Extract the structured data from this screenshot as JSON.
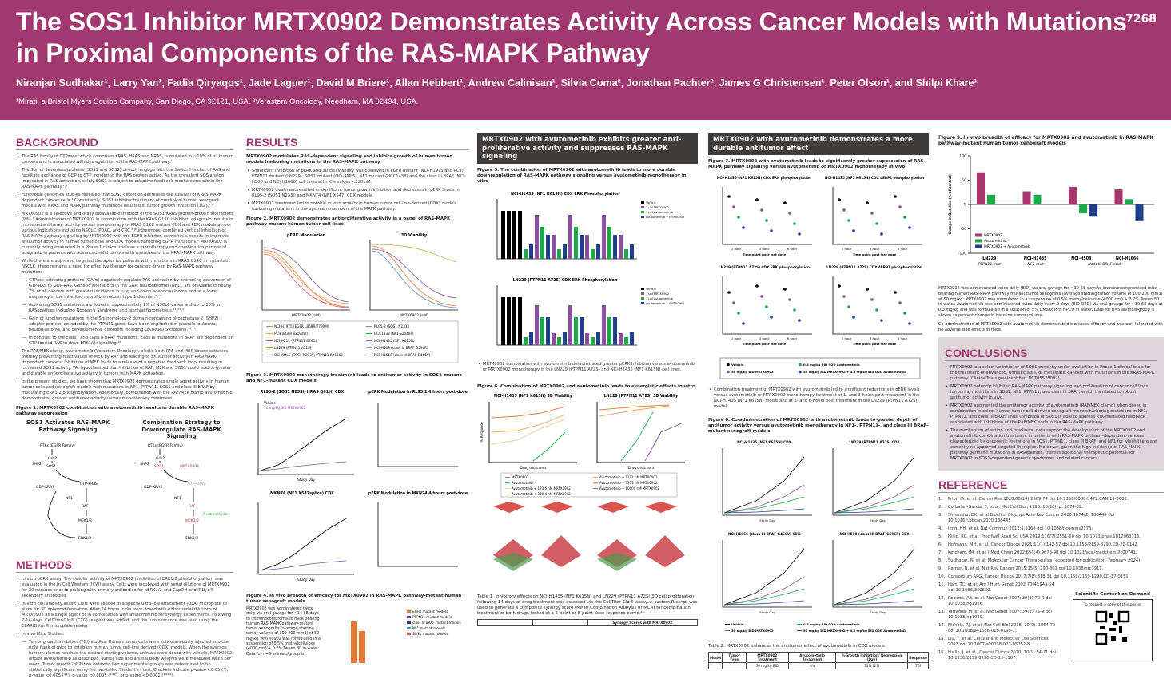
{
  "header": {
    "title": "The SOS1 Inhibitor MRTX0902 Demonstrates Activity Across Cancer Models with Mutations in Proximal Components of the RAS-MAPK Pathway",
    "poster_number": "7268",
    "authors": "Niranjan Sudhakar¹, Larry Yan¹, Fadia Qiryaqos¹, Jade Laguer¹, David M Briere¹, Allan Hebbert¹, Andrew Calinisan¹, Silvia Coma², Jonathan Pachter², James G Christensen¹, Peter Olson¹, and Shilpi Khare¹",
    "affiliations": "¹Mirati, a Bristol Myers Squibb Company, San Diego, CA 92121, USA. ²Verastem Oncology, Needham, MA 02494, USA."
  },
  "background": {
    "heading": "BACKGROUND",
    "bullets": [
      {
        "t": "The RAS family of GTPases, which comprises KRAS, HRAS and NRAS, is mutated in ~19% of all human cancers and is associated with dysregulation of the RAS-MAPK pathway.¹"
      },
      {
        "t": "The Son of Sevenless proteins (SOS1 and SOS2) directly engage with the Switch I pocket of RAS and facilitate exchange of GDP to GTP, rendering the RAS protein active. As the prevalent SOS analog implicated in RAS activation, solely SOS1 is subject to adaptive feedback mechanisms within the RAS-MAPK pathway.²·³"
      },
      {
        "t": "Functional genomics studies revealed that SOS1 depletion decreases the survival of KRAS-MAPK dependent cancer cells.⁴ Consistently, SOS1 inhibitor treatment of preclinical human xenograft models with KRAS and MAPK pathway mutations resulted in tumor growth inhibition (TGI).⁵·⁶"
      },
      {
        "t": "MRTX0902 is a selective and orally bioavailable inhibitor of the SOS1:KRAS protein-protein interaction (PPI).⁷ Administration of MRTX0902 in combination with the KRAS G12C inhibitor, adagrasib, results in increased antitumor activity versus monotherapy in KRAS G12C mutant CDX and PDX models across various indications including NSCLC, PDAC, and CRC.⁸ Furthermore, combined vertical inhibition of RAS-MAPK pathway signaling by MRTX0902 with the EGFR inhibitor, osimertinib, results in improved antitumor activity in human tumor cells and CDX models harboring EGFR mutations.⁸ MRTX0902 is currently being evaluated in a Phase 1 clinical trials as a monotherapy and combination partner of adagrasib in patients with advanced solid tumors with mutations in the KRAS-MAPK pathway."
      },
      {
        "t": "While there are approved targeted therapies for patients with mutations in KRAS G12C in metastatic NSCLC, there remains a need for effective therapy for cancers driven by RAS-MAPK pathway mutations:"
      },
      {
        "t": "GTPase-activating proteins (GAPs) negatively regulate RAS activation by promoting conversion of GTP-RAS to GDP-RAS. Genetic alterations in the GAP, neurofibromin (NF1), are prevalent in nearly 7% of all cancers with greatest incidence in lung and colon adenocarcinoma and at a lower frequency in the inherited neurofibromatosis type 1 disorder.⁹·¹⁰",
        "sub": true
      },
      {
        "t": "Activating SOS1 mutations are found in approximately 1% of NSCLC cases and up to 10% in RASopathies including Noonan's Syndrome and gingival fibromatosis.¹¹·¹²·¹³",
        "sub": true
      },
      {
        "t": "Gain of function mutations in the Src homology-2 domain-containing phosphatase 2 (SHP2) adaptor protein, encoded by the PTPN11 gene, have been implicated in juvenile leukemia, neuroblastoma, and developmental disorders including LEOPARD Syndrome.¹⁴·¹⁵",
        "sub": true
      },
      {
        "t": "In contrast to the class I and class II BRAF mutations, class III mutations in BRAF are dependent on GTP loaded RAS to drive ERK1/2 signalling.¹⁶",
        "sub": true
      },
      {
        "t": "The RAF/MEK clamp, avutometinib (Verastem Oncology), blocks both RAF and MEK kinase activities, thereby preventing reactivation of MEK by RAF and leading to antitumor activity in RAS/MAPK-dependent cancers. Inhibition of MEK leads to a release of a negative feedback loop, resulting in increased SOS1 activity. We hypothesized that inhibition of RAF, MEK and SOS1 could lead to greater and durable antiproliferative activity in tumors with MAPK activation."
      },
      {
        "t": "In the present studies, we have shown that MRTX0902 demonstrates single agent activity in human tumor cells and xenograft models with mutations in NF1, PTPN11, SOS1 and class III BRAF by modulating ERK1/2 phosphorylation. Additionally, combination with the RAF/MEK clamp avutometinib demonstrated greater antitumor activity versus monotherapy treatment."
      }
    ],
    "fig1_caption": "Figure 1. MRTX0902 combination with avutometinib results in durable RAS-MAPK pathway suppression",
    "fig1": {
      "left_title": "SOS1 Activates RAS-MAPK Pathway Signaling",
      "right_title": "Combination Strategy to Downregulate RAS-MAPK Signaling",
      "nodes": [
        "RTKs (EGFR Family)",
        "Grb2",
        "SHP2",
        "SOS1",
        "GDP-KRAS",
        "GTP-KRAS",
        "NF1",
        "RAF",
        "MEK1/2",
        "ERK1/2"
      ],
      "drug1": "MRTX0902",
      "drug2": "Avutometinib"
    }
  },
  "methods": {
    "heading": "METHODS",
    "bullets": [
      {
        "t": "In vitro pERK assay: The cellular activity of MRTX0902 (inhibition of ERK1/2 phosphorylation) was evaluated in the In-Cell Western (ICW) assay. Cells were incubated with serial dilutions of MRTX0902 for 30 minutes prior to probing with primary antibodies for pERK1/2 and GapDH and IRDye® secondary antibodies."
      },
      {
        "t": "In vitro cell viability assay: Cells were seeded in a special ultra-low attachment (ULA) microplate to allow for 3D spheroid formation. After 24 hours, cells were dosed with either serial dilutions of MRTX0902 as a single agent or in combination with avutometinib for synergy experiments. Following 7-14-days, CellTiter-Glo® (CTG) reagent was added, and the luminescence was read using the CLARIOstar® microplate reader."
      },
      {
        "t": "In vivo Mice Studies:"
      },
      {
        "t": "Tumor growth inhibition (TGI) studies: Human tumor cells were subcutaneously injected into the right flank of mice to establish human tumor cell-line derived (CDX) models. When the average tumor volumes reached the desired starting volume, animals were dosed with vehicle, MRTX0902, and/or avutometinib as described. Tumor size and animal body weights were measured twice per week. Tumor growth inhibition between two experimental groups was determined to be statistically significant using the two-tailed Student's t test. Brackets indicate p-value <0.05 (*), p-value <0.005 (**), p-value <0.0005 (***), or p-value <0.0001 (****).",
        "sub": true
      }
    ]
  },
  "results": {
    "heading": "RESULTS",
    "subheading": "MRTX0902 modulates RAS-dependent signaling and inhibits growth of human tumor models harboring mutations in the RAS-MAPK pathway",
    "bullets": [
      {
        "t": "Significant inhibition of pERK and 3D cell viability was observed in EGFR mutant (NCI-H1975 and PC9), PTPN11 mutant (LN229), SOS1 mutant (OCI-AML5), NF1 mutant (HCC1438) and the class III BRAF (NCI-H508 and NCI-H1666) cell lines with IC₅₀ values <250 nM."
      },
      {
        "t": "MRTX0902 treatment resulted in significant tumor growth inhibition and decreases in pERK levels in RL95-2 (SOS1 N233I) and MKN74 (NF1 X547) CDX models."
      },
      {
        "t": "MRTX0902 treatment led to notable in vivo activity in human tumor cell line-derived (CDX) models harboring mutations in the upstream members of the MAPK pathway."
      }
    ],
    "fig2_caption": "Figure 2. MRTX0902 demonstrates antiproliferative activity in a panel of RAS-MAPK pathway-mutant human tumor cell lines",
    "fig2_panels": [
      "pERK Modulation",
      "3D Viability"
    ],
    "fig2_xlabel": "MRTX0902 (nM)",
    "fig2_legend": [
      "NCI-H1975 (EGFR L858R/T790M)",
      "PC9 (EGFR ex19del)",
      "NCI-H211 (PTPN11 E76G)",
      "LN229 (PTPN11 A72S)",
      "OCI-AML5 (SOS1 N233Y; PTPN11 R265Q)",
      "RL95-2 (SOS1 N233I)",
      "HCC1438 (NF1 S2040F)",
      "NCI-H1435 (NF1 K615N)",
      "NCI-H508 (class III BRAF G596R)",
      "NCI-H1666 (class III BRAF G466V)"
    ],
    "fig3_caption": "Figure 3. MRTX0902 monotherapy treatment leads to antitumor activity in SOS1-mutant and NF1-mutant CDX models",
    "fig3_panels": [
      "RL95-2 (SOS1 N233I; HRAS Q61H) CDX",
      "pERK Modulation in RL95-2 4 hours post-dose",
      "MKN74 (NF1 X547splice) CDX",
      "pERK Modulation in MKN74 4 hours post-dose"
    ],
    "fig3_legend": [
      "Vehicle",
      "50 mg/kg BID MRTX0902"
    ],
    "fig3_xlabel": "Study Day",
    "fig4_caption": "Figure 4. In vivo breadth of efficacy for MRTX0902 in RAS-MAPK pathway-mutant human tumor xenograft models",
    "fig4_text": "MRTX0902 was administered twice daily via oral gavage for ~14-68 days to immunocompromised mice bearing human RAS-MAPK pathway-mutant tumor xenografts (average starting tumor volume of 100-200 mm3) at 50 mg/kg. MRTX0902 was formulated in a suspension of 0.5% methylcellulose (4000 cps) + 0.2% Tween 80 in water. Data for n=5 animals/group is",
    "fig4_legend": [
      "EGFR mutant models",
      "PTPN11 mutant models",
      "class III BRAF mutant models",
      "NF1 mutant models",
      "SOS1 mutant models"
    ]
  },
  "col3": {
    "section_title": "MRTX0902 with avutometinib exhibits greater anti-proliferative activity and suppresses RAS-MAPK signaling",
    "fig5_caption": "Figure 5. The combination of MRTX0902 with avutometinib leads to more durable downregulation of RAS-MAPK pathway signaling versus avutometinib monotherapy in vitro",
    "fig5_panels": [
      "NCI-H1435 (NF1 K615N) CDX ERK Phosphorylation",
      "LN229 (PTPN11 A72S) CDX ERK Phosphorylation"
    ],
    "fig5_legend": [
      "Vehicle",
      "1 µM MRTX0902",
      "1 µM Avutometinib",
      "Avutometinib + MRTX0902"
    ],
    "bullet": "MRTX0902 combination with avutometinib demonstrated greater pERK inhibition versus avutometinib or MRTX0902 monotherapy in the LN229 (PTPN11 A72S) and NCI-H1435 (NF1 K615N) cell lines.",
    "fig6_caption": "Figure 6. Combination of MRTX0902 and avutometinib leads to synergistic effects in vitro",
    "fig6_panels": [
      "NCI-H1435 (NF1 K615N) 3D Viability",
      "LN229 (PTPN11 A72S) 3D Viability"
    ],
    "fig6_xlabel": "Drug treatment",
    "fig6_ylabel": "% Response",
    "fig6_legend": [
      "MRTX0902",
      "Avutometinib",
      "Avutometinib + 123.5 nM MRTX0902",
      "Avutometinib + 370.4 nM MRTX0902",
      "Avutometinib + 1111 nM MRTX0902",
      "Avutometinib + 3333 nM MRTX0902",
      "Avutometinib + 10000 nM MRTX0902"
    ],
    "table1_caption": "Table 1. Inhibitory effects on NCI-H1435 (NF1 K615N) and LN229 (PTPN11 A72S) 3D cell proliferation following 14 days of drug treatment was assessed via the CellTiter-Glo® assay. A custom R-script was used to generate a composite synergy score (Mirati Combination Analysis or MCA) for combination treatment of both drugs tested at a 5-point or 8-point dose-response curve.¹⁶",
    "table1_header": "Synergy Scores with MRTX0902"
  },
  "col4": {
    "section_title": "MRTX0902 with avutometinib demonstrates a more durable antitumor effect",
    "fig7_caption": "Figure 7. MRTX0902 with avutometinib leads to significantly greater suppression of RAS-MAPK pathway signaling versus avutometinib or MRTX0902 monotherapy in vivo",
    "fig7_panels": [
      "NCI-H1435 (NF1 K615N) CDX ERK phosphorylation",
      "NCI-H1435 (NF1 K615N) CDX 4EBP1 phosphorylation",
      "LN229 (PTPN11 A72S) CDX ERK phosphorylation",
      "LN229 (PTPN11 A72S) CDX 4EBP1 phosphorylation"
    ],
    "fig7_xticks": [
      "1 hour",
      "3 hour",
      "6 hour"
    ],
    "fig7_xlabel": "Time point post last dose",
    "fig7_legend": [
      "Vehicle",
      "50 mg/kg BID MRTX0902",
      "0.3 mg/kg BID Q2D Avutometinib",
      "50 mg/kg BID MRTX0902 + 0.3 mg/kg BID Q2D Avutometinib"
    ],
    "bullet": "Combination treatment of MRTX0902 with avutometinib led to significant reductions in pERK levels versus avutometinib or MRTX0902 monotherapy treatment at 1- and 3-hours post treatment in the NCI-H1435 (NF1 K615N) model and at 3- and 6-hours post treatment in the LN229 (PTPN11 A72S) model.",
    "fig8_caption": "Figure 8. Co-administration of MRTX0902 with avutometinib leads to greater depth of antitumor activity versus avutometinib monotherapy in NF1-, PTPN11-, and class III BRAF-mutant xenograft models",
    "fig8_panels": [
      "NCI-H1435 (NF1 K615N) CDX",
      "LN229 (PTPN11 A72S) CDX",
      "NCI-H1666 (class III BRAF G466V) CDX",
      "NCI-H508 (class III BRAF G596R) CDX"
    ],
    "fig8_xlabel": "Study Day",
    "table2_caption": "Table 2: MRTX0902 enhances the antitumor effect of avutometinib in CDX models",
    "table2_headers": [
      "Model",
      "Tumor Type",
      "MRTX0902 Treatment",
      "Avutometinib Treatment",
      "%Growth Inhibition/ Regression (Day)",
      "Response"
    ],
    "table2_rows": [
      [
        "",
        "",
        "50 mg/kg BID",
        "n/a",
        "73% (27)",
        "TGI"
      ]
    ]
  },
  "col5": {
    "fig9_caption": "Figure 9. In vivo breadth of efficacy for MRTX0902 and avutometinib in RAS-MAPK pathway-mutant human tumor xenograft models",
    "fig9_sublabels": [
      "PTPN11 mut",
      "NF1 mut",
      "class III BRAF mut"
    ],
    "fig9_text": "MRTX0902 was administered twice daily (BID) via oral gavage for ~30-68 days to immunocompromised mice bearing human RAS-MAPK pathway-mutant tumor xenografts (average starting tumor volume of 100-200 mm3) at 50 mg/kg. MRTX0902 was formulated in a suspension of 0.5% methylcellulose (4000 cps) + 0.2% Tween 80 in water. Avutometinib was administered twice daily every 2 days (BID Q2D) via oral gavage for ~30-68 days at 0.3 mg/kg and was formulated in a solution of 5% DMSO:95% HPCD in water. Data for n=5 animals/group is shown as percent change in baseline tumor volume.",
    "fig9_text2": "Co-administration of MRTX0902 with avutometinib demonstrated increased efficacy and was well-tolerated with no adverse side effects in mice.",
    "conclusions_heading": "CONCLUSIONS",
    "conclusions": [
      {
        "t": "MRTX0902 is a selective inhibitor of SOS1 currently under evaluation in Phase 1 clinical trials for the treatment of advanced, unresectable, or metastatic cancers with mutations in the KRAS-MAPK pathway (ClinicalTrials.gov identifier: NCT05578092)."
      },
      {
        "t": "MRTX0902 potently inhibited RAS-MAPK pathway signaling and proliferation of cancer cell lines harboring mutations in SOS1, NF1, PTPN11, and class III BRAF, which translated to robust antitumor activity in vivo."
      },
      {
        "t": "MRTX0902 augmented the antitumor activity of avutometinib (RAF/MEK clamp) when dosed in combination in select human tumor cell-derived xenograft models harboring mutations in NF1, PTPN11, and class III BRAF. Thus, inhibition of SOS1 is able to address RTK-mediated feedback associated with inhibition of the RAF/MEK node in the RAS-MAPK pathway."
      },
      {
        "t": "The mechanism of action and preclinical data support the development of the MRTX0902 and avutometinib combination treatment in patients with RAS-MAPK pathway-dependent cancers characterized by oncogenic mutations in SOS1, PTPN11, class III BRAF, and NF1 for which there are currently no approved targeted therapies. Moreover, given the high incidence of RAS-MAPK pathway germline mutations in RASopathies, there is additional therapeutic potential for MRTX0902 in SOS1-dependent genetic syndromes and related cancers."
      }
    ],
    "reference_heading": "REFERENCE",
    "references": [
      "Prior, IA, et al. Cancer Res 2020;80(14):2969-74 doi 10.1158/0008-5472.CAN-19-3682.",
      "Corbalan-Garcia, S, et al. Mol Cell Biol, 1996. 16(10): p. 5674-82.",
      "Simanshu, DK, et al Biochim Biophys Acta Rev Cancer 2020;1874(2):188445 doi 10.1016/j.bbcan.2020.188445.",
      "Jeng, HH, et al. Nat Commun 2012;3:1168 doi 10.1038/ncomms2173.",
      "Hillig, RC, et al. Proc Natl Acad Sci USA 2019;116(7):2551-60 doi 10.1073/pnas.1812963116.",
      "Hofmann, MH, et al. Cancer Discov 2021;11(1):142-57 doi 10.1158/2159-8290.CD-20-0142.",
      "Ketcham, JM, et al. J Med Chem 2022;65(14):9678-90 doi 10.1021/acs.jmedchem.2c00741.",
      "Sudhakar, N, et al. Molecular Cancer Therapeutics (accepted for publication, February 2024).",
      "Ratner, N, et al. Nat Rev Cancer 2015;15(5):290-301 doi 10.1038/nrc3911.",
      "Consortium APG. Cancer Discov 2017;7(8):818-31 doi 10.1158/2159-8290.CD-17-0151.",
      "Hart, TC, et al. Am J Hum Genet 2002;70(4):943-54 doi 10.1086/339689.",
      "Roberts, AE, et al. Nat Genet 2007; 39(1):70-4 doi 10.1038/ng1926.",
      "Tartaglia, M, et al. Nat Genet 2007; 39(1):75-9 doi 10.1038/ng1939.",
      "Nichols, RJ, et al. Nat Cell Biol 2018; 20(9): 1064-73 doi 10.1038/s41556-018-0169-1.",
      "Liu, Y, et al. Cellular and Molecular Life Sciences 2023;doi 10.1007/s00018-023-05052-8.",
      "Hallin, J, et al., Cancer Discov 2020; 10(1):54-71 doi 10.1158/2159-8290.CD-19-1167."
    ],
    "qr_title": "Scientific Content on Demand",
    "qr_text": "To request a copy of this poster"
  },
  "colors": {
    "brand": "#a1386f",
    "section_box": "#3f3b3a",
    "conclusions_bg": "#ddd6da",
    "mrtx": "#a8366f",
    "avuto": "#1ea84a",
    "combo": "#1f3f8a"
  },
  "chart_data": {
    "type": "bar",
    "categories": [
      "LN229",
      "NCI-H1435",
      "NCI-H508",
      "NCI-H1666"
    ],
    "series": [
      {
        "name": "MRTX0902",
        "values": [
          66,
          27,
          36,
          31
        ]
      },
      {
        "name": "Avutometinib",
        "values": [
          20,
          20,
          -18,
          11
        ]
      },
      {
        "name": "MRTX0902 + Avutometinib",
        "values": [
          null,
          null,
          -25,
          -34
        ]
      }
    ],
    "ylabel": "Change in Baseline (% of control)",
    "ylim": [
      -100,
      100
    ],
    "yticks": [
      100,
      50,
      0,
      -50,
      -100
    ],
    "legend": "bottom-left"
  }
}
